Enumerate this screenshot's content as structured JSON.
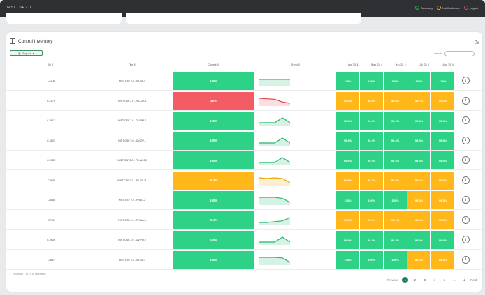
{
  "app": {
    "title": "NIST CSF 2.0",
    "nav": [
      {
        "label": "Summary",
        "color": "#3fae5f"
      },
      {
        "label": "Notifications ▾",
        "color": "#f2a71b"
      },
      {
        "label": "Logout",
        "color": "#e05050"
      }
    ]
  },
  "panel": {
    "title": "Control Inventory",
    "export_label": "Export",
    "search_label": "Search:",
    "search_value": "",
    "footer": "Showing 1 to 10 of 18 entries"
  },
  "columns": {
    "id": "ID ⇕",
    "title": "Title ⇕",
    "current": "Current ⇕",
    "trend": "Trend ⇕",
    "months": [
      "Apr '25 ⇕",
      "May '25 ⇕",
      "Jun '25 ⇕",
      "Jul '25 ⇕",
      "Aug '25 ⇕"
    ]
  },
  "colors": {
    "green": "#2ed286",
    "orange": "#ffb719",
    "red": "#f45c64",
    "accent": "#1f7a5c"
  },
  "rows": [
    {
      "id": "C-118",
      "title": "NIST CSF 2.0 - ID.RA-4",
      "current": "100%",
      "current_status": "green",
      "trend": [
        100,
        100,
        100,
        100,
        100
      ],
      "months": [
        "100%",
        "100%",
        "100%",
        "100%",
        "100%"
      ],
      "month_status": [
        "green",
        "green",
        "green",
        "green",
        "green"
      ]
    },
    {
      "id": "C-1079",
      "title": "NIST CSF 2.0 - RS.CO-4",
      "current": "46%",
      "current_status": "red",
      "trend": [
        46.2,
        46.0,
        45.8,
        44.7,
        44.2
      ],
      "months": [
        "46.2%",
        "46.0%",
        "45.8%",
        "44.7%",
        "44.2%"
      ],
      "month_status": [
        "orange",
        "orange",
        "orange",
        "orange",
        "orange"
      ]
    },
    {
      "id": "C-2612",
      "title": "NIST CSF 2.0 - GV.RM-7",
      "current": "100%",
      "current_status": "green",
      "trend": [
        99.4,
        99.4,
        99.4,
        99.5,
        99.4
      ],
      "months": [
        "99.4%",
        "99.4%",
        "99.4%",
        "99.5%",
        "99.4%"
      ],
      "month_status": [
        "green",
        "green",
        "green",
        "green",
        "green"
      ]
    },
    {
      "id": "C-2623",
      "title": "NIST CSF 2.0 - GV.OV-1",
      "current": "100%",
      "current_status": "green",
      "trend": [
        99.4,
        99.4,
        99.4,
        99.5,
        99.4
      ],
      "months": [
        "99.4%",
        "99.4%",
        "99.4%",
        "99.5%",
        "99.4%"
      ],
      "month_status": [
        "green",
        "green",
        "green",
        "green",
        "green"
      ]
    },
    {
      "id": "C-2635",
      "title": "NIST CSF 2.0 - PR.AA-03",
      "current": "100%",
      "current_status": "green",
      "trend": [
        99.4,
        99.4,
        99.4,
        99.5,
        99.4
      ],
      "months": [
        "99.4%",
        "99.4%",
        "99.4%",
        "99.5%",
        "99.4%"
      ],
      "month_status": [
        "green",
        "green",
        "green",
        "green",
        "green"
      ]
    },
    {
      "id": "C-805",
      "title": "NIST CSF 2.0 - PR.DS-11",
      "current": "99.8%",
      "current_status": "orange",
      "trend": [
        99.8,
        99.7,
        99.8,
        99.7,
        99.1
      ],
      "months": [
        "99.8%",
        "99.7%",
        "99.8%",
        "99.7%",
        "99.1%"
      ],
      "month_status": [
        "orange",
        "orange",
        "orange",
        "orange",
        "orange"
      ]
    },
    {
      "id": "C-855",
      "title": "NIST CSF 2.0 - PR.AT-2",
      "current": "100%",
      "current_status": "green",
      "trend": [
        100,
        100,
        100,
        99.8,
        99.1
      ],
      "months": [
        "100%",
        "100%",
        "100%",
        "99.8%",
        "99.1%"
      ],
      "month_status": [
        "green",
        "green",
        "green",
        "orange",
        "orange"
      ]
    },
    {
      "id": "C-761",
      "title": "NIST CSF 2.0 - PR.AA-6",
      "current": "99.6%",
      "current_status": "green",
      "trend": [
        99.0,
        99.0,
        99.1,
        99.2,
        99.6
      ],
      "months": [
        "99.0%",
        "99.0%",
        "99.1%",
        "99.2%",
        "99.6%"
      ],
      "month_status": [
        "orange",
        "orange",
        "orange",
        "orange",
        "orange"
      ]
    },
    {
      "id": "C-2639",
      "title": "NIST CSF 2.0 - GV.PO-2",
      "current": "100%",
      "current_status": "green",
      "trend": [
        99.4,
        99.4,
        99.4,
        99.5,
        99.4
      ],
      "months": [
        "99.4%",
        "99.4%",
        "99.4%",
        "99.5%",
        "99.4%"
      ],
      "month_status": [
        "green",
        "green",
        "green",
        "green",
        "green"
      ]
    },
    {
      "id": "C-637",
      "title": "NIST CSF 2.0 - ID.RA-3",
      "current": "100%",
      "current_status": "green",
      "trend": [
        100,
        100,
        100,
        99.9,
        99.1
      ],
      "months": [
        "100%",
        "100%",
        "100%",
        "99.9%",
        "99.1%"
      ],
      "month_status": [
        "green",
        "green",
        "green",
        "orange",
        "orange"
      ]
    }
  ],
  "pagination": {
    "previous": "Previous",
    "next": "Next",
    "pages": [
      "1",
      "2",
      "3",
      "4",
      "5",
      "…",
      "12"
    ],
    "active": "1"
  }
}
